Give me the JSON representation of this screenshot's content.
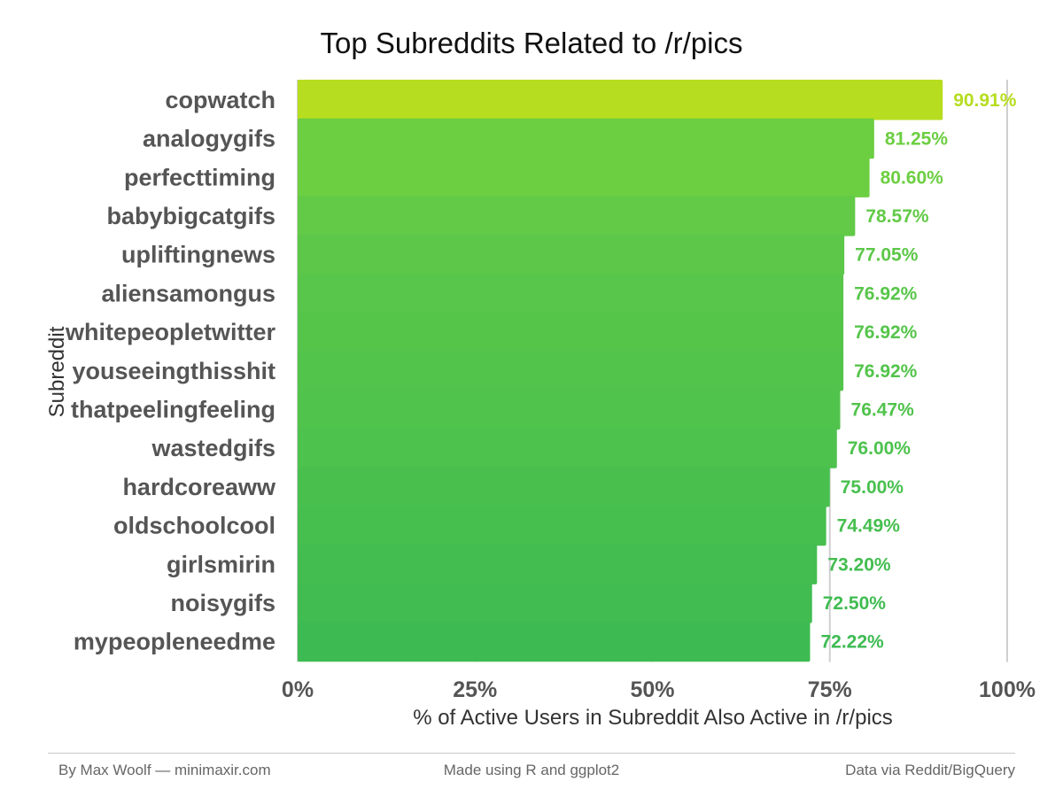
{
  "chart_data": {
    "type": "bar",
    "orientation": "horizontal",
    "title": "Top Subreddits Related to /r/pics",
    "xlabel": "% of Active Users in Subreddit Also Active in /r/pics",
    "ylabel": "Subreddit",
    "xlim": [
      0,
      100
    ],
    "x_ticks": [
      "0%",
      "25%",
      "50%",
      "75%",
      "100%"
    ],
    "x_tick_values": [
      0,
      25,
      50,
      75,
      100
    ],
    "grid": "vertical major",
    "categories": [
      "copwatch",
      "analogygifs",
      "perfecttiming",
      "babybigcatgifs",
      "upliftingnews",
      "aliensamongus",
      "whitepeopletwitter",
      "youseeingthisshit",
      "thatpeelingfeeling",
      "wastedgifs",
      "hardcoreaww",
      "oldschoolcool",
      "girlsmirin",
      "noisygifs",
      "mypeopleneedme"
    ],
    "values": [
      90.91,
      81.25,
      80.6,
      78.57,
      77.05,
      76.92,
      76.92,
      76.92,
      76.47,
      76.0,
      75.0,
      74.49,
      73.2,
      72.5,
      72.22
    ],
    "data_labels": [
      "90.91%",
      "81.25%",
      "80.60%",
      "78.57%",
      "77.05%",
      "76.92%",
      "76.92%",
      "76.92%",
      "76.47%",
      "76.00%",
      "75.00%",
      "74.49%",
      "73.20%",
      "72.50%",
      "72.22%"
    ],
    "colors": [
      "#b6dd1f",
      "#6cce41",
      "#6ccf41",
      "#62ca46",
      "#5cc748",
      "#58c64a",
      "#55c54a",
      "#53c44b",
      "#50c34c",
      "#4dc24d",
      "#49c04e",
      "#46bf4f",
      "#43bd50",
      "#40bc51",
      "#3dbb52"
    ]
  },
  "footer": {
    "left": "By Max Woolf — minimaxir.com",
    "center": "Made using R and ggplot2",
    "right": "Data via Reddit/BigQuery"
  }
}
